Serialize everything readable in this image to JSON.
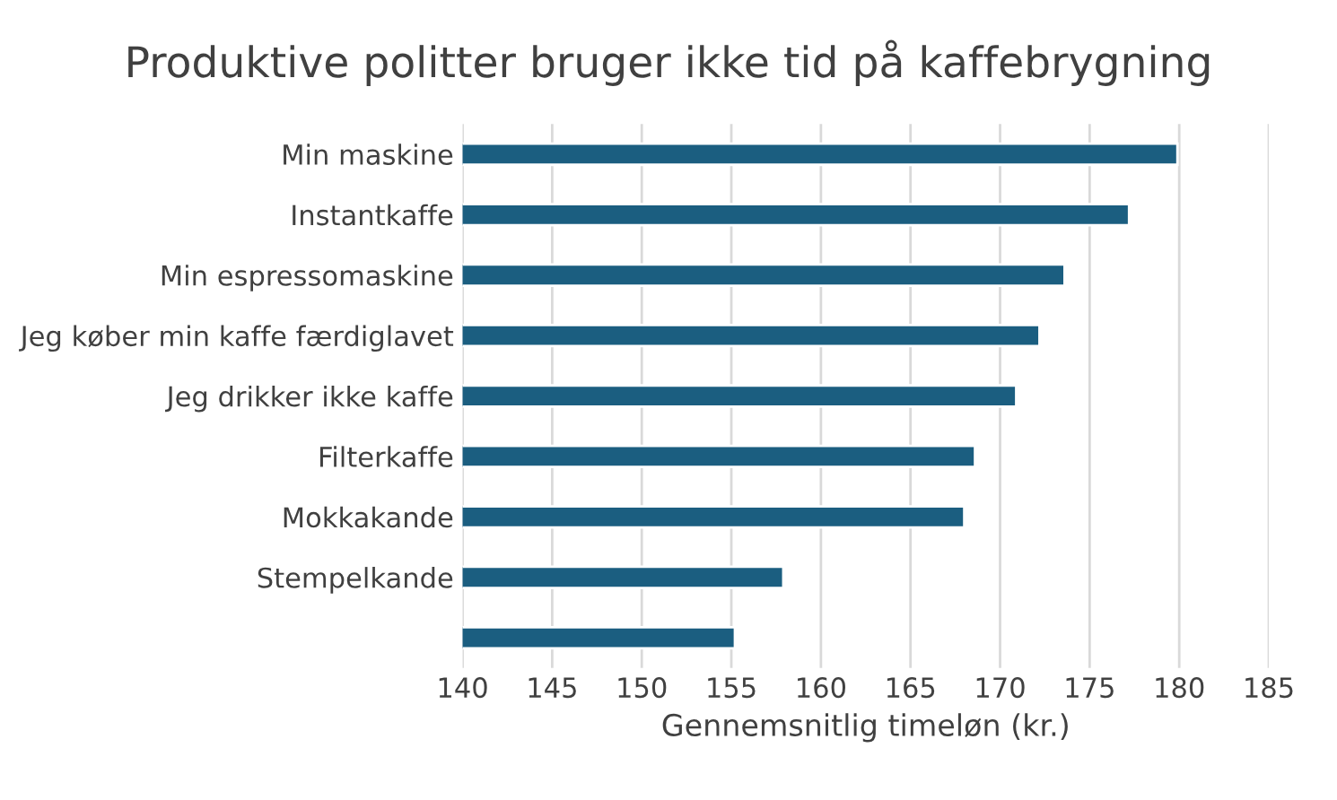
{
  "chart_data": {
    "type": "bar",
    "orientation": "horizontal",
    "title": "Produktive politter bruger ikke tid på kaffebrygning",
    "xlabel": "Gennemsnitlig timeløn (kr.)",
    "categories": [
      "Min maskine",
      "Instantkaffe",
      "Min espressomaskine",
      "Jeg køber min kaffe færdiglavet",
      "Jeg drikker ikke kaffe",
      "Filterkaffe",
      "Mokkakande",
      "Stempelkande",
      null
    ],
    "values": [
      179.9,
      177.2,
      173.6,
      172.2,
      170.9,
      168.6,
      168.0,
      157.9,
      155.2
    ],
    "color": "#1b5e80",
    "xlim": [
      140,
      185
    ],
    "xticks": [
      140,
      145,
      150,
      155,
      160,
      165,
      170,
      175,
      180,
      185
    ],
    "grid": "x"
  }
}
